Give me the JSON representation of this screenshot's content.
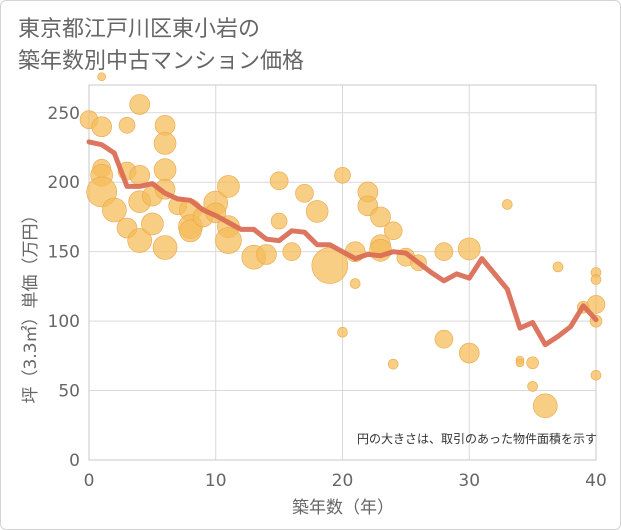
{
  "title_line1": "東京都江戸川区東小岩の",
  "title_line2": "築年数別中古マンション価格",
  "chart_data": {
    "type": "scatter",
    "xlabel": "築年数（年）",
    "ylabel": "坪（3.3㎡）単価（万円）",
    "xlim": [
      0,
      40
    ],
    "ylim": [
      0,
      270
    ],
    "xticks": [
      "0",
      "10",
      "20",
      "30",
      "40"
    ],
    "yticks": [
      "0",
      "50",
      "100",
      "150",
      "200",
      "250"
    ],
    "annotation": "円の大きさは、取引のあった物件面積を示す",
    "grid": true,
    "colors": {
      "bubble": "#f5bc5b",
      "line": "#d96a52",
      "grid": "#d9d9d9"
    },
    "points": [
      {
        "x": 0,
        "y": 245,
        "s": 9
      },
      {
        "x": 1,
        "y": 276,
        "s": 4
      },
      {
        "x": 1,
        "y": 240,
        "s": 10
      },
      {
        "x": 1,
        "y": 210,
        "s": 9
      },
      {
        "x": 1,
        "y": 205,
        "s": 11
      },
      {
        "x": 1,
        "y": 193,
        "s": 15
      },
      {
        "x": 2,
        "y": 180,
        "s": 12
      },
      {
        "x": 3,
        "y": 241,
        "s": 8
      },
      {
        "x": 3,
        "y": 208,
        "s": 9
      },
      {
        "x": 3,
        "y": 167,
        "s": 10
      },
      {
        "x": 4,
        "y": 256,
        "s": 10
      },
      {
        "x": 4,
        "y": 205,
        "s": 10
      },
      {
        "x": 4,
        "y": 186,
        "s": 11
      },
      {
        "x": 4,
        "y": 158,
        "s": 12
      },
      {
        "x": 5,
        "y": 190,
        "s": 10
      },
      {
        "x": 5,
        "y": 170,
        "s": 11
      },
      {
        "x": 6,
        "y": 241,
        "s": 10
      },
      {
        "x": 6,
        "y": 228,
        "s": 11
      },
      {
        "x": 6,
        "y": 209,
        "s": 11
      },
      {
        "x": 6,
        "y": 195,
        "s": 10
      },
      {
        "x": 6,
        "y": 153,
        "s": 12
      },
      {
        "x": 7,
        "y": 183,
        "s": 9
      },
      {
        "x": 8,
        "y": 180,
        "s": 11
      },
      {
        "x": 8,
        "y": 168,
        "s": 12
      },
      {
        "x": 8,
        "y": 165,
        "s": 11
      },
      {
        "x": 9,
        "y": 175,
        "s": 10
      },
      {
        "x": 10,
        "y": 185,
        "s": 12
      },
      {
        "x": 10,
        "y": 178,
        "s": 10
      },
      {
        "x": 11,
        "y": 197,
        "s": 11
      },
      {
        "x": 11,
        "y": 168,
        "s": 11
      },
      {
        "x": 11,
        "y": 158,
        "s": 13
      },
      {
        "x": 13,
        "y": 146,
        "s": 12
      },
      {
        "x": 14,
        "y": 148,
        "s": 10
      },
      {
        "x": 15,
        "y": 201,
        "s": 9
      },
      {
        "x": 15,
        "y": 172,
        "s": 8
      },
      {
        "x": 16,
        "y": 150,
        "s": 9
      },
      {
        "x": 17,
        "y": 192,
        "s": 9
      },
      {
        "x": 18,
        "y": 179,
        "s": 11
      },
      {
        "x": 19,
        "y": 140,
        "s": 18
      },
      {
        "x": 20,
        "y": 205,
        "s": 8
      },
      {
        "x": 20,
        "y": 92,
        "s": 5
      },
      {
        "x": 21,
        "y": 150,
        "s": 10
      },
      {
        "x": 21,
        "y": 127,
        "s": 5
      },
      {
        "x": 22,
        "y": 193,
        "s": 10
      },
      {
        "x": 22,
        "y": 183,
        "s": 10
      },
      {
        "x": 23,
        "y": 175,
        "s": 10
      },
      {
        "x": 23,
        "y": 155,
        "s": 10
      },
      {
        "x": 23,
        "y": 151,
        "s": 11
      },
      {
        "x": 24,
        "y": 165,
        "s": 9
      },
      {
        "x": 24,
        "y": 69,
        "s": 5
      },
      {
        "x": 25,
        "y": 146,
        "s": 9
      },
      {
        "x": 26,
        "y": 142,
        "s": 8
      },
      {
        "x": 28,
        "y": 150,
        "s": 9
      },
      {
        "x": 28,
        "y": 87,
        "s": 9
      },
      {
        "x": 30,
        "y": 152,
        "s": 11
      },
      {
        "x": 30,
        "y": 77,
        "s": 10
      },
      {
        "x": 33,
        "y": 184,
        "s": 5
      },
      {
        "x": 34,
        "y": 72,
        "s": 4
      },
      {
        "x": 34,
        "y": 70,
        "s": 4
      },
      {
        "x": 35,
        "y": 70,
        "s": 6
      },
      {
        "x": 35,
        "y": 53,
        "s": 5
      },
      {
        "x": 36,
        "y": 39,
        "s": 12
      },
      {
        "x": 37,
        "y": 139,
        "s": 5
      },
      {
        "x": 39,
        "y": 110,
        "s": 6
      },
      {
        "x": 40,
        "y": 135,
        "s": 5
      },
      {
        "x": 40,
        "y": 130,
        "s": 5
      },
      {
        "x": 40,
        "y": 112,
        "s": 9
      },
      {
        "x": 40,
        "y": 100,
        "s": 6
      },
      {
        "x": 40,
        "y": 61,
        "s": 5
      }
    ],
    "trend": {
      "x": [
        0,
        1,
        2,
        3,
        4,
        5,
        6,
        7,
        8,
        9,
        10,
        11,
        12,
        13,
        14,
        15,
        16,
        17,
        18,
        19,
        20,
        21,
        22,
        23,
        24,
        25,
        26,
        27,
        28,
        29,
        30,
        31,
        32,
        33,
        34,
        35,
        36,
        37,
        38,
        39,
        40
      ],
      "y": [
        229,
        227,
        221,
        197,
        197,
        199,
        192,
        188,
        187,
        180,
        176,
        171,
        166,
        166,
        159,
        158,
        165,
        164,
        155,
        155,
        150,
        145,
        148,
        147,
        150,
        149,
        142,
        135,
        129,
        134,
        131,
        145,
        134,
        123,
        95,
        99,
        83,
        89,
        96,
        111,
        101
      ]
    }
  }
}
